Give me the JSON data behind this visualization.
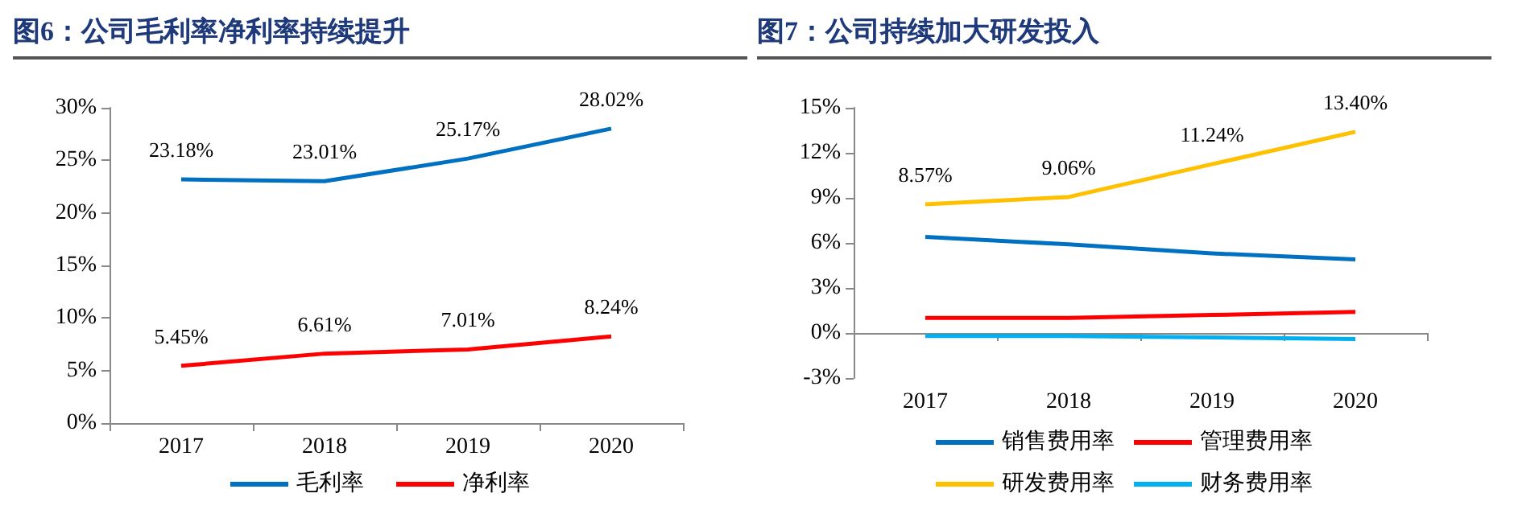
{
  "chart_data": [
    {
      "type": "line",
      "title": "图6：公司毛利率净利率持续提升",
      "categories": [
        "2017",
        "2018",
        "2019",
        "2020"
      ],
      "ylim": [
        0,
        30
      ],
      "yticks": [
        {
          "value": 0,
          "label": "0%"
        },
        {
          "value": 5,
          "label": "5%"
        },
        {
          "value": 10,
          "label": "10%"
        },
        {
          "value": 15,
          "label": "15%"
        },
        {
          "value": 20,
          "label": "20%"
        },
        {
          "value": 25,
          "label": "25%"
        },
        {
          "value": 30,
          "label": "30%"
        }
      ],
      "grid": false,
      "legend": "bottom",
      "marker": "none",
      "series": [
        {
          "name": "毛利率",
          "color": "#0070c0",
          "values": [
            23.18,
            23.01,
            25.17,
            28.02
          ],
          "value_labels": [
            "23.18%",
            "23.01%",
            "25.17%",
            "28.02%"
          ]
        },
        {
          "name": "净利率",
          "color": "#ff0000",
          "values": [
            5.45,
            6.61,
            7.01,
            8.24
          ],
          "value_labels": [
            "5.45%",
            "6.61%",
            "7.01%",
            "8.24%"
          ]
        }
      ]
    },
    {
      "type": "line",
      "title": "图7：公司持续加大研发投入",
      "categories": [
        "2017",
        "2018",
        "2019",
        "2020"
      ],
      "ylim": [
        -3,
        15
      ],
      "yticks": [
        {
          "value": -3,
          "label": "-3%"
        },
        {
          "value": 0,
          "label": "0%"
        },
        {
          "value": 3,
          "label": "3%"
        },
        {
          "value": 6,
          "label": "6%"
        },
        {
          "value": 9,
          "label": "9%"
        },
        {
          "value": 12,
          "label": "12%"
        },
        {
          "value": 15,
          "label": "15%"
        }
      ],
      "grid": false,
      "legend": "bottom",
      "marker": "none",
      "series": [
        {
          "name": "销售费用率",
          "color": "#0070c0",
          "values": [
            6.4,
            5.9,
            5.3,
            4.9
          ]
        },
        {
          "name": "管理费用率",
          "color": "#ff0000",
          "values": [
            1.0,
            1.0,
            1.2,
            1.4
          ]
        },
        {
          "name": "研发费用率",
          "color": "#ffc000",
          "values": [
            8.57,
            9.06,
            11.24,
            13.4
          ],
          "value_labels": [
            "8.57%",
            "9.06%",
            "11.24%",
            "13.40%"
          ]
        },
        {
          "name": "财务费用率",
          "color": "#00b0f0",
          "values": [
            -0.2,
            -0.2,
            -0.3,
            -0.4
          ]
        }
      ]
    }
  ]
}
